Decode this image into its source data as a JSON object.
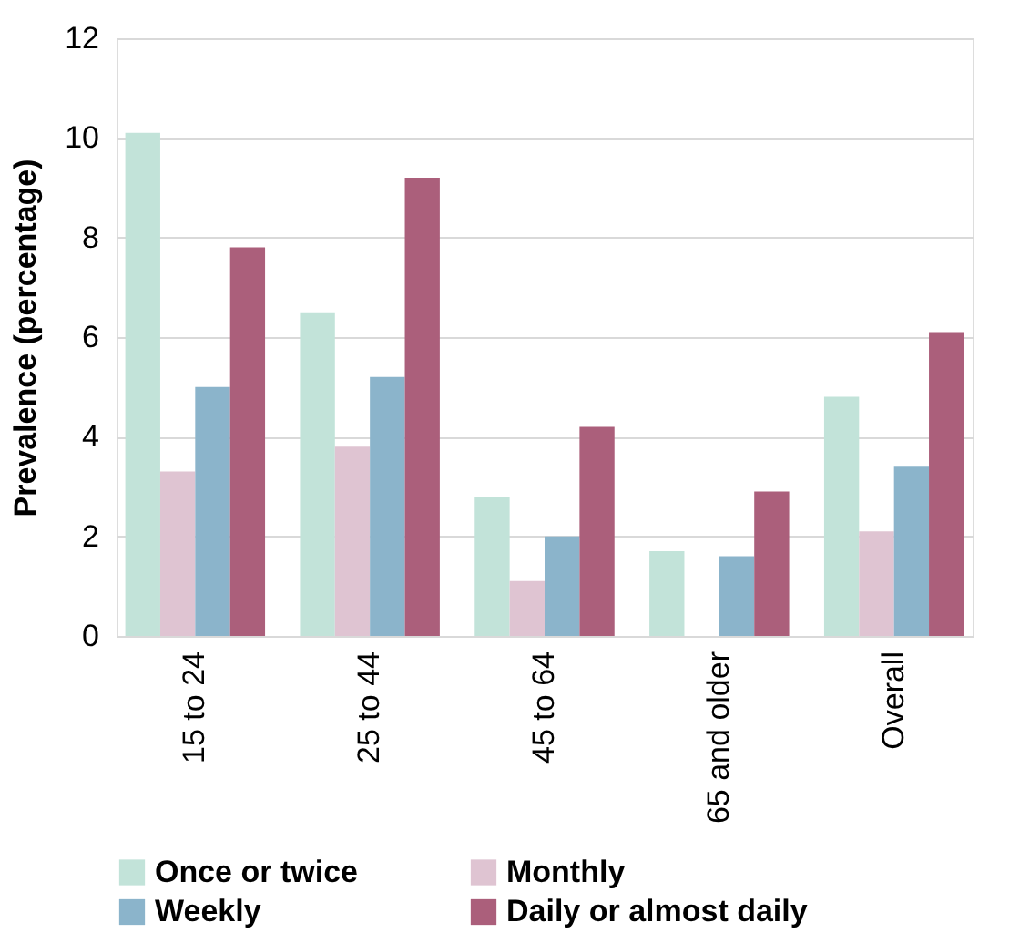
{
  "chart_data": {
    "type": "bar",
    "ylabel": "Prevalence (percentage)",
    "categories": [
      "15 to 24",
      "25 to 44",
      "45 to 64",
      "65 and older",
      "Overall"
    ],
    "series": [
      {
        "name": "Once or twice",
        "color": "#c2e3d9",
        "values": [
          10.1,
          6.5,
          2.8,
          1.7,
          4.8
        ]
      },
      {
        "name": "Monthly",
        "color": "#dfc4d2",
        "values": [
          3.3,
          3.8,
          1.1,
          null,
          2.1
        ]
      },
      {
        "name": "Weekly",
        "color": "#8bb4cb",
        "values": [
          5.0,
          5.2,
          2.0,
          1.6,
          3.4
        ]
      },
      {
        "name": "Daily or almost daily",
        "color": "#ab5f7b",
        "values": [
          7.8,
          9.2,
          4.2,
          2.9,
          6.1
        ]
      }
    ],
    "ylim": [
      0,
      12
    ],
    "yticks": [
      0,
      2,
      4,
      6,
      8,
      10,
      12
    ],
    "grid": "y",
    "legend": "bottom"
  }
}
